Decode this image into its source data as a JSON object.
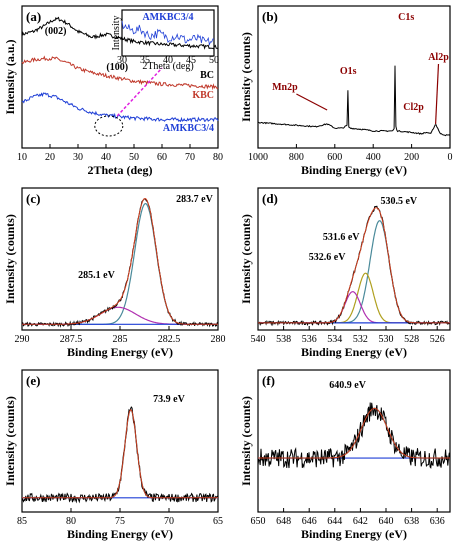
{
  "chart_data": [
    {
      "id": "a",
      "type": "line",
      "panel_label": "(a)",
      "xlabel": "2Theta (deg)",
      "ylabel": "Intensity (a.u.)",
      "xlim": [
        10,
        80
      ],
      "xticks": [
        10,
        20,
        30,
        40,
        50,
        60,
        70,
        80
      ],
      "ylim": [
        0,
        1
      ],
      "series": [
        {
          "name": "BC",
          "color": "#000000",
          "x": [
            10,
            14,
            18,
            21,
            23,
            26,
            30,
            35,
            40,
            44,
            50,
            60,
            70,
            80
          ],
          "y": [
            0.8,
            0.82,
            0.86,
            0.9,
            0.91,
            0.88,
            0.82,
            0.78,
            0.8,
            0.78,
            0.75,
            0.73,
            0.72,
            0.71
          ]
        },
        {
          "name": "KBC",
          "color": "#c0392b",
          "x": [
            10,
            14,
            18,
            22,
            26,
            30,
            35,
            40,
            45,
            50,
            60,
            70,
            80
          ],
          "y": [
            0.6,
            0.62,
            0.63,
            0.63,
            0.6,
            0.56,
            0.53,
            0.51,
            0.49,
            0.47,
            0.45,
            0.44,
            0.43
          ]
        },
        {
          "name": "AMKBC3/4",
          "color": "#1f3fd6",
          "x": [
            10,
            14,
            18,
            22,
            26,
            30,
            35,
            40,
            45,
            50,
            60,
            70,
            80
          ],
          "y": [
            0.32,
            0.36,
            0.38,
            0.36,
            0.32,
            0.28,
            0.25,
            0.23,
            0.22,
            0.21,
            0.2,
            0.2,
            0.2
          ]
        }
      ],
      "annotations": [
        "(002)",
        "(100)",
        "BC",
        "KBC",
        "AMKBC3/4"
      ],
      "inset": {
        "title": "AMKBC3/4",
        "xlabel": "2Theta (deg)",
        "ylabel": "Intensity",
        "xticks": [
          30,
          35,
          40,
          45,
          50
        ],
        "xlim": [
          30,
          50
        ],
        "x": [
          30,
          32,
          34,
          36,
          38,
          40,
          42,
          44,
          46,
          48,
          50
        ],
        "y": [
          0.85,
          0.7,
          0.72,
          0.55,
          0.62,
          0.5,
          0.55,
          0.42,
          0.48,
          0.38,
          0.4
        ]
      }
    },
    {
      "id": "b",
      "type": "line",
      "panel_label": "(b)",
      "xlabel": "Binding Energy (eV)",
      "ylabel": "Intensity (counts)",
      "xlim": [
        1000,
        0
      ],
      "xticks": [
        1000,
        800,
        600,
        400,
        200,
        0
      ],
      "ylim": [
        0,
        1
      ],
      "series": [
        {
          "name": "",
          "color": "#000000",
          "x": [
            1000,
            900,
            800,
            700,
            640,
            600,
            560,
            535,
            532,
            529,
            520,
            450,
            400,
            300,
            288,
            285,
            282,
            275,
            200,
            150,
            120,
            100,
            75,
            50,
            20,
            0
          ],
          "y": [
            0.18,
            0.17,
            0.16,
            0.15,
            0.17,
            0.14,
            0.14,
            0.16,
            0.42,
            0.15,
            0.14,
            0.13,
            0.12,
            0.12,
            0.14,
            0.95,
            0.15,
            0.12,
            0.11,
            0.1,
            0.11,
            0.1,
            0.17,
            0.1,
            0.09,
            0.09
          ]
        }
      ],
      "annotations": [
        "C1s",
        "O1s",
        "Mn2p",
        "Cl2p",
        "Al2p"
      ]
    },
    {
      "id": "c",
      "type": "line",
      "panel_label": "(c)",
      "xlabel": "Binding Energy (eV)",
      "ylabel": "Intensity (counts)",
      "xlim": [
        290,
        280
      ],
      "xticks": [
        290.0,
        287.5,
        285.0,
        282.5,
        280.0
      ],
      "ylim": [
        0,
        1
      ],
      "peaks": [
        {
          "label": "283.7 eV",
          "center": 283.7,
          "height": 0.85,
          "width": 0.55,
          "color": "#4a8a9a"
        },
        {
          "label": "285.1 eV",
          "center": 285.1,
          "height": 0.12,
          "width": 0.9,
          "color": "#b030b0"
        }
      ],
      "baseline": 0.04,
      "annotations": [
        "283.7 eV",
        "285.1 eV"
      ]
    },
    {
      "id": "d",
      "type": "line",
      "panel_label": "(d)",
      "xlabel": "Binding Energy (eV)",
      "ylabel": "Intensity (counts)",
      "xlim": [
        540,
        525
      ],
      "xticks": [
        540,
        538,
        536,
        534,
        532,
        530,
        528,
        526
      ],
      "ylim": [
        0,
        1
      ],
      "peaks": [
        {
          "label": "530.5 eV",
          "center": 530.5,
          "height": 0.72,
          "width": 0.75,
          "color": "#4a8a9a"
        },
        {
          "label": "531.6 eV",
          "center": 531.6,
          "height": 0.35,
          "width": 0.6,
          "color": "#b0a020"
        },
        {
          "label": "532.6 eV",
          "center": 532.6,
          "height": 0.22,
          "width": 0.6,
          "color": "#b030b0"
        }
      ],
      "baseline": 0.05,
      "annotations": [
        "530.5 eV",
        "531.6 eV",
        "532.6 eV"
      ]
    },
    {
      "id": "e",
      "type": "line",
      "panel_label": "(e)",
      "xlabel": "Binding Energy (eV)",
      "ylabel": "Intensity (counts)",
      "xlim": [
        85,
        65
      ],
      "xticks": [
        85,
        80,
        75,
        70,
        65
      ],
      "ylim": [
        0,
        1
      ],
      "peaks": [
        {
          "label": "73.9 eV",
          "center": 73.9,
          "height": 0.62,
          "width": 0.6,
          "color": "#4a8a9a"
        }
      ],
      "baseline": 0.1,
      "annotations": [
        "73.9 eV"
      ]
    },
    {
      "id": "f",
      "type": "line",
      "panel_label": "(f)",
      "xlabel": "Binding Energy (eV)",
      "ylabel": "Intensity (counts)",
      "xlim": [
        650,
        635
      ],
      "xticks": [
        650,
        648,
        646,
        644,
        642,
        640,
        638,
        636
      ],
      "ylim": [
        0,
        1
      ],
      "peaks": [
        {
          "label": "640.9 eV",
          "center": 640.9,
          "height": 0.35,
          "width": 1.0,
          "color": "#4a8a9a"
        }
      ],
      "baseline": 0.38,
      "annotations": [
        "640.9 eV"
      ]
    }
  ]
}
